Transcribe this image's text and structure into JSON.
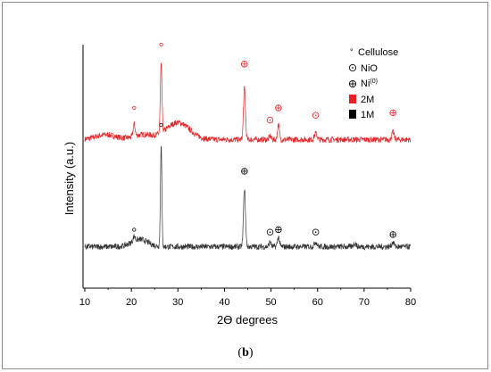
{
  "caption": {
    "open": "(",
    "letter": "b",
    "close": ")"
  },
  "chart_data": {
    "type": "line",
    "xlabel": "2ϴ degrees",
    "ylabel": "Intensity (a.u.)",
    "xlim": [
      10,
      80
    ],
    "xticks": [
      "10",
      "20",
      "30",
      "40",
      "50",
      "60",
      "70",
      "80"
    ],
    "legend_position": "top-right",
    "legend": {
      "cellulose": "Cellulose",
      "nio": "NiO",
      "ni": "Ni",
      "ni_sup": "(0)",
      "series_2m": "2M",
      "series_1m": "1M"
    },
    "colors": {
      "series_2m": "#e3262a",
      "series_1m": "#333333",
      "marker_2m": "#ee1c24",
      "marker_1m": "#000000"
    },
    "series": [
      {
        "name": "2M",
        "baseline": 0.61,
        "noise": 0.012,
        "peaks": [
          {
            "x": 14.5,
            "h": 0.02,
            "w": 3.0
          },
          {
            "x": 20.6,
            "h": 0.05,
            "w": 0.3
          },
          {
            "x": 22.5,
            "h": 0.02,
            "w": 3.0
          },
          {
            "x": 26.4,
            "h": 0.28,
            "w": 0.25
          },
          {
            "x": 30.0,
            "h": 0.07,
            "w": 3.5
          },
          {
            "x": 44.3,
            "h": 0.21,
            "w": 0.3
          },
          {
            "x": 49.8,
            "h": 0.015,
            "w": 0.3
          },
          {
            "x": 51.6,
            "h": 0.06,
            "w": 0.3
          },
          {
            "x": 59.6,
            "h": 0.025,
            "w": 0.4
          },
          {
            "x": 76.2,
            "h": 0.03,
            "w": 0.35
          }
        ]
      },
      {
        "name": "1M",
        "baseline": 0.17,
        "noise": 0.012,
        "peaks": [
          {
            "x": 20.6,
            "h": 0.02,
            "w": 0.3
          },
          {
            "x": 21.8,
            "h": 0.03,
            "w": 2.5
          },
          {
            "x": 26.4,
            "h": 0.42,
            "w": 0.22
          },
          {
            "x": 44.3,
            "h": 0.24,
            "w": 0.3
          },
          {
            "x": 49.8,
            "h": 0.02,
            "w": 0.3
          },
          {
            "x": 51.6,
            "h": 0.04,
            "w": 0.3
          },
          {
            "x": 59.6,
            "h": 0.02,
            "w": 0.4
          },
          {
            "x": 68.0,
            "h": 0.015,
            "w": 0.4
          },
          {
            "x": 76.2,
            "h": 0.02,
            "w": 0.35
          }
        ]
      }
    ],
    "markers": [
      {
        "series": "2M",
        "type": "cellulose",
        "x": 20.6,
        "y": 0.74
      },
      {
        "series": "2M",
        "type": "cellulose",
        "x": 26.4,
        "y": 1.0
      },
      {
        "series": "2M",
        "type": "ni",
        "x": 44.3,
        "y": 0.92
      },
      {
        "series": "2M",
        "type": "nio",
        "x": 49.8,
        "y": 0.69
      },
      {
        "series": "2M",
        "type": "ni",
        "x": 51.6,
        "y": 0.74
      },
      {
        "series": "2M",
        "type": "nio",
        "x": 59.6,
        "y": 0.71
      },
      {
        "series": "2M",
        "type": "ni",
        "x": 76.2,
        "y": 0.72
      },
      {
        "series": "1M",
        "type": "cellulose",
        "x": 20.6,
        "y": 0.24
      },
      {
        "series": "1M",
        "type": "cellulose",
        "x": 26.4,
        "y": 0.67
      },
      {
        "series": "1M",
        "type": "ni",
        "x": 44.3,
        "y": 0.48
      },
      {
        "series": "1M",
        "type": "nio",
        "x": 49.8,
        "y": 0.23
      },
      {
        "series": "1M",
        "type": "ni",
        "x": 51.6,
        "y": 0.24
      },
      {
        "series": "1M",
        "type": "nio",
        "x": 59.6,
        "y": 0.23
      },
      {
        "series": "1M",
        "type": "ni",
        "x": 76.2,
        "y": 0.22
      }
    ]
  }
}
